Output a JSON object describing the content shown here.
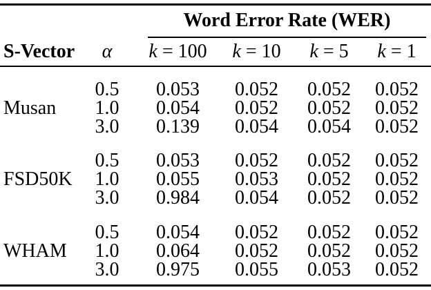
{
  "page": {
    "background": "#ffffff",
    "text_color": "#000000",
    "rule_color": "#000000"
  },
  "table": {
    "spanner_title": "Word Error Rate (WER)",
    "columns": {
      "s_vector": "S-Vector",
      "alpha": "α",
      "k": [
        {
          "var": "k",
          "eq": "= 100"
        },
        {
          "var": "k",
          "eq": "= 10"
        },
        {
          "var": "k",
          "eq": "= 5"
        },
        {
          "var": "k",
          "eq": "= 1"
        }
      ]
    },
    "groups": [
      {
        "label": "Musan",
        "rows": [
          {
            "alpha": "0.5",
            "values": [
              "0.053",
              "0.052",
              "0.052",
              "0.052"
            ]
          },
          {
            "alpha": "1.0",
            "values": [
              "0.054",
              "0.052",
              "0.052",
              "0.052"
            ]
          },
          {
            "alpha": "3.0",
            "values": [
              "0.139",
              "0.054",
              "0.054",
              "0.052"
            ]
          }
        ]
      },
      {
        "label": "FSD50K",
        "rows": [
          {
            "alpha": "0.5",
            "values": [
              "0.053",
              "0.052",
              "0.052",
              "0.052"
            ]
          },
          {
            "alpha": "1.0",
            "values": [
              "0.055",
              "0.053",
              "0.052",
              "0.052"
            ]
          },
          {
            "alpha": "3.0",
            "values": [
              "0.984",
              "0.054",
              "0.052",
              "0.052"
            ]
          }
        ]
      },
      {
        "label": "WHAM",
        "rows": [
          {
            "alpha": "0.5",
            "values": [
              "0.054",
              "0.052",
              "0.052",
              "0.052"
            ]
          },
          {
            "alpha": "1.0",
            "values": [
              "0.064",
              "0.052",
              "0.052",
              "0.052"
            ]
          },
          {
            "alpha": "3.0",
            "values": [
              "0.975",
              "0.055",
              "0.053",
              "0.052"
            ]
          }
        ]
      }
    ]
  }
}
